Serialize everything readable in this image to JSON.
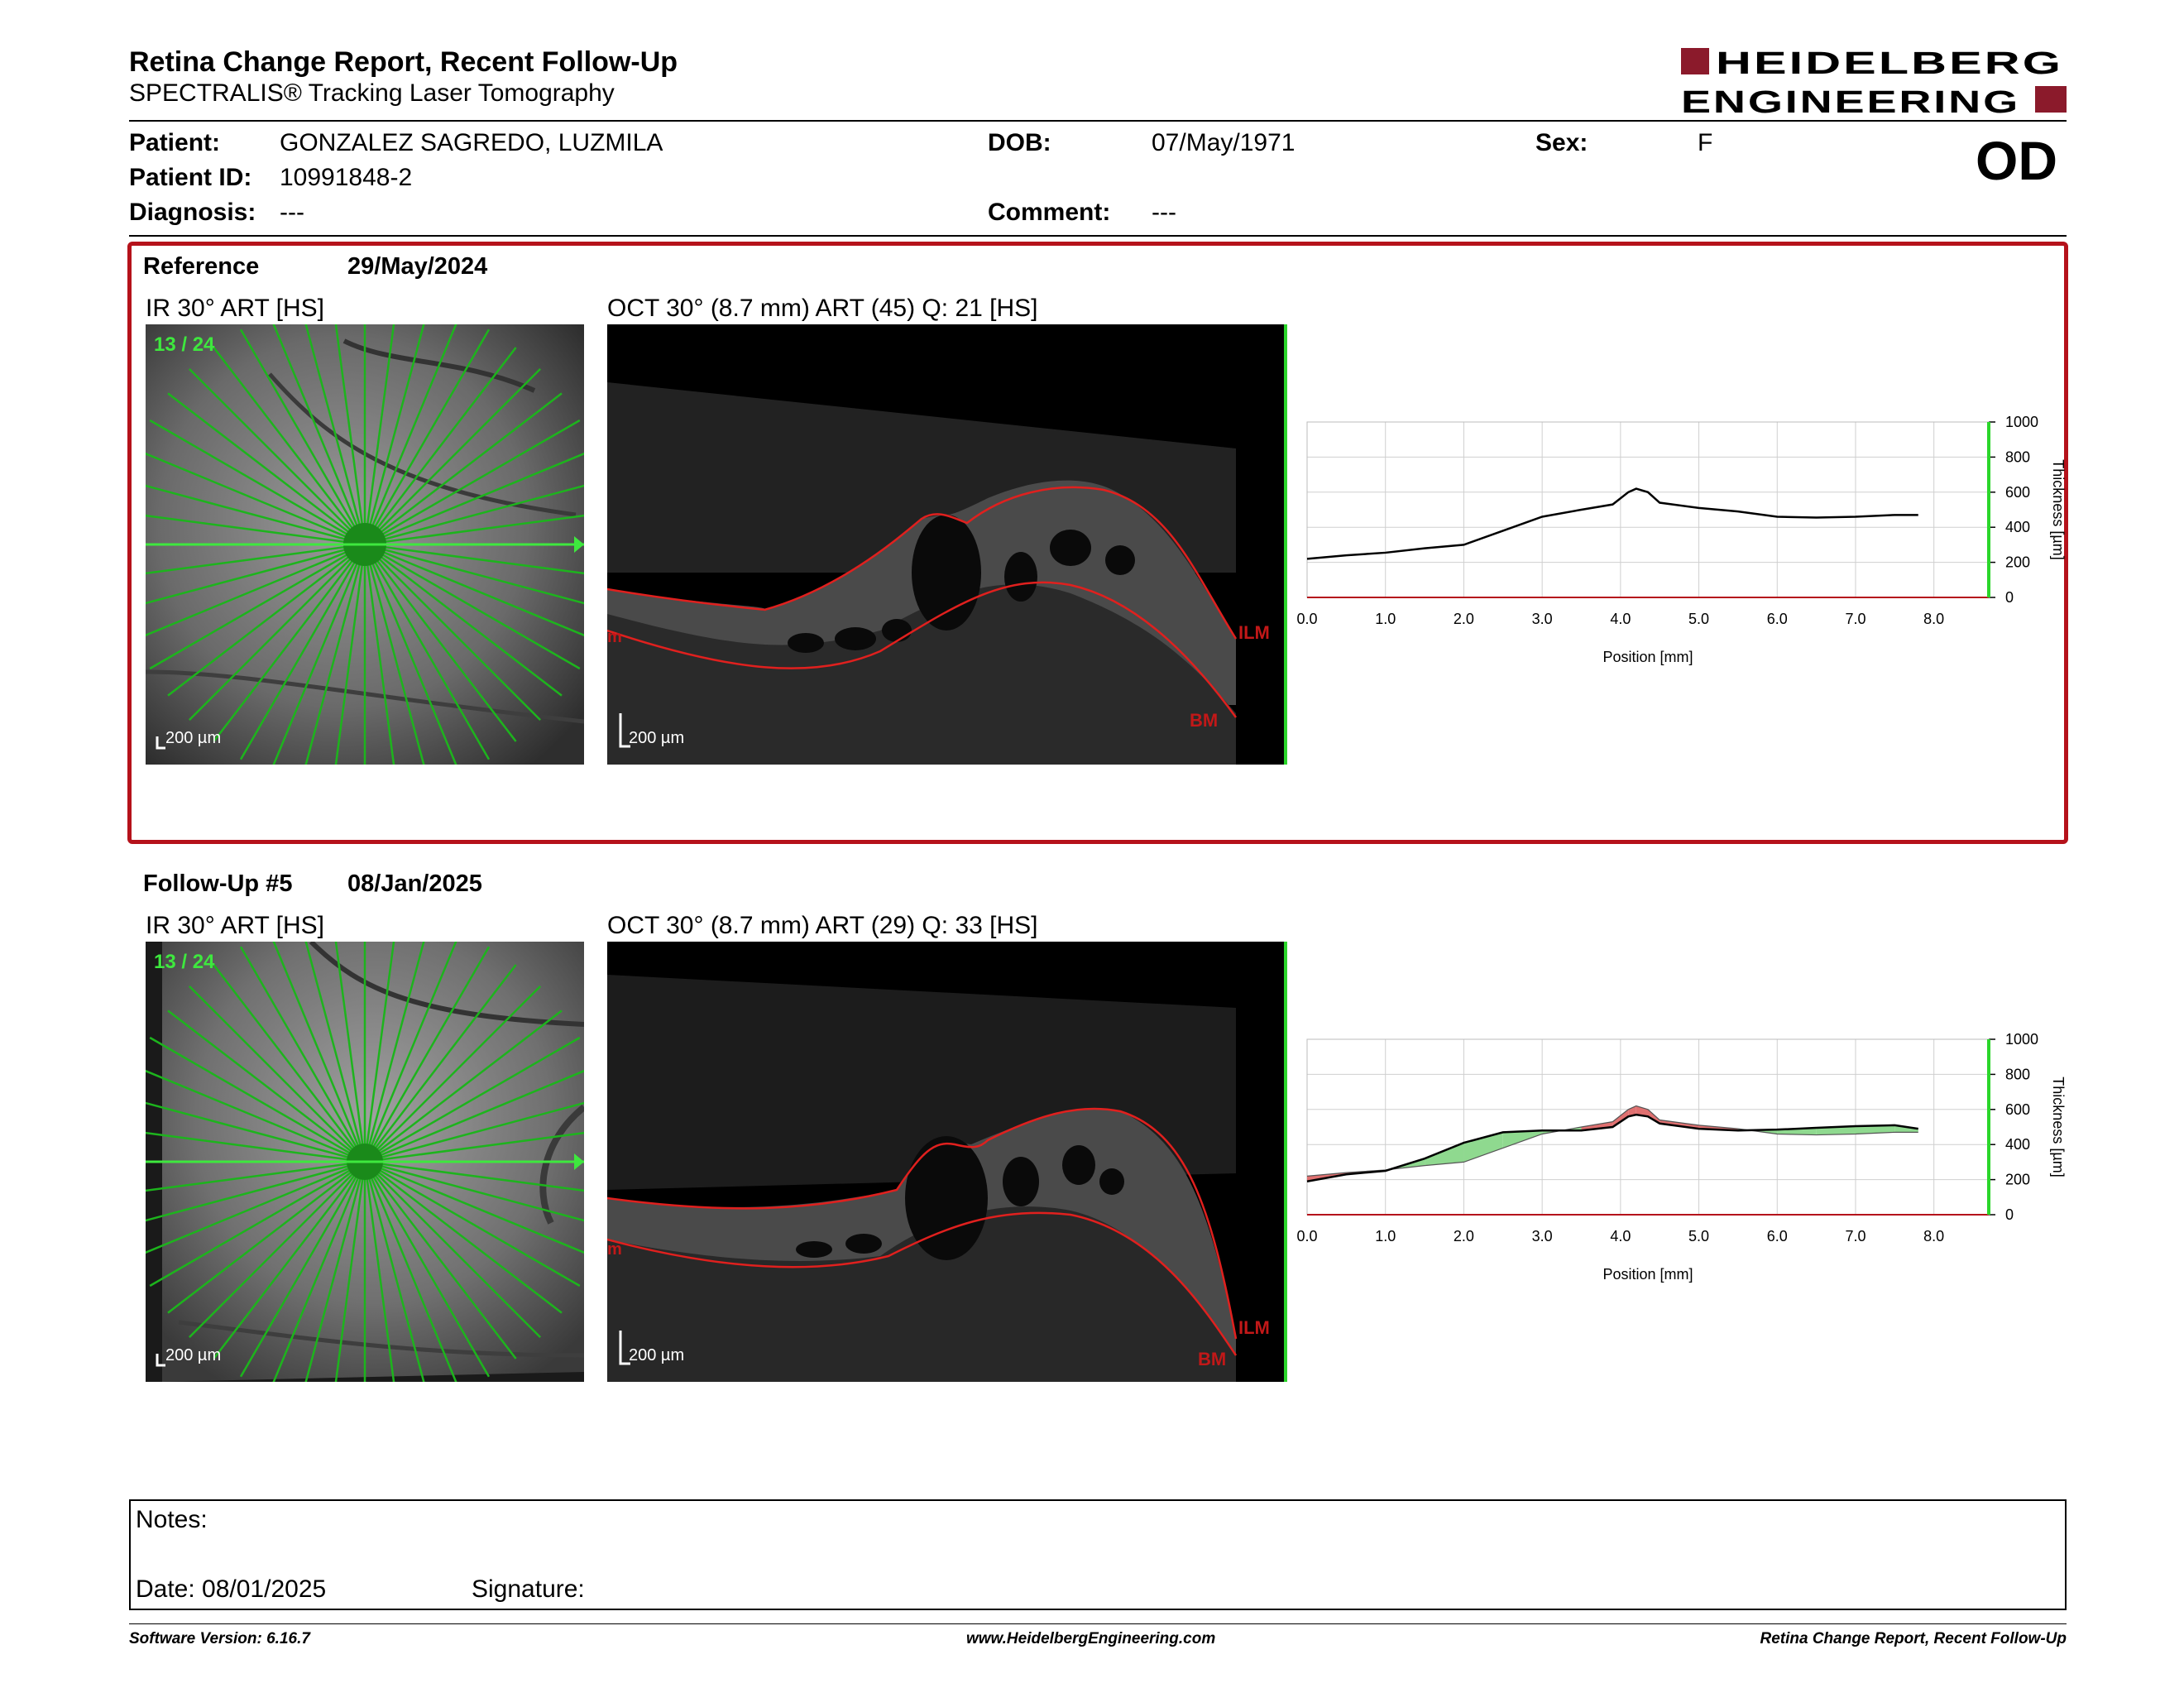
{
  "header": {
    "title": "Retina Change Report, Recent Follow-Up",
    "subtitle": "SPECTRALIS® Tracking Laser Tomography",
    "logo_line1": "HEIDELBERG",
    "logo_line2": "ENGINEERING",
    "brand_color": "#8b1a2b"
  },
  "patient": {
    "patient_label": "Patient:",
    "patient_value": "GONZALEZ SAGREDO, LUZMILA",
    "id_label": "Patient ID:",
    "id_value": "10991848-2",
    "diagnosis_label": "Diagnosis:",
    "diagnosis_value": "---",
    "dob_label": "DOB:",
    "dob_value": "07/May/1971",
    "comment_label": "Comment:",
    "comment_value": "---",
    "sex_label": "Sex:",
    "sex_value": "F",
    "eye": "OD"
  },
  "reference": {
    "label": "Reference",
    "date": "29/May/2024",
    "ir_caption": "IR 30° ART [HS]",
    "oct_caption": "OCT 30° (8.7 mm) ART (45) Q: 21 [HS]",
    "scan_index": "13 / 24",
    "scale_ir": "200 µm",
    "scale_oct": "200 µm",
    "ilm_label": "ILM",
    "bm_label": "BM",
    "edge_label": "m",
    "frame_color": "#b5121b"
  },
  "followup": {
    "label": "Follow-Up #5",
    "date": "08/Jan/2025",
    "ir_caption": "IR 30° ART [HS]",
    "oct_caption": "OCT 30° (8.7 mm) ART (29) Q: 33 [HS]",
    "scan_index": "13 / 24",
    "scale_ir": "200 µm",
    "scale_oct": "200 µm",
    "ilm_label": "ILM",
    "bm_label": "BM",
    "edge_label": "m"
  },
  "chart_data": [
    {
      "type": "line",
      "xlabel": "Position [mm]",
      "ylabel": "Thickness [µm]",
      "xlim": [
        0,
        8.7
      ],
      "ylim": [
        0,
        1000
      ],
      "x_ticks": [
        "0.0",
        "1.0",
        "2.0",
        "3.0",
        "4.0",
        "5.0",
        "6.0",
        "7.0",
        "8.0"
      ],
      "y_ticks": [
        "0",
        "200",
        "400",
        "600",
        "800",
        "1000"
      ],
      "grid": true,
      "series": [
        {
          "color": "#000000",
          "x": [
            0,
            0.5,
            1,
            1.5,
            2,
            2.5,
            3,
            3.5,
            3.9,
            4.1,
            4.2,
            4.35,
            4.5,
            5,
            5.5,
            6,
            6.5,
            7,
            7.5,
            7.8
          ],
          "y": [
            220,
            240,
            255,
            280,
            300,
            380,
            460,
            500,
            530,
            600,
            620,
            600,
            540,
            510,
            490,
            460,
            455,
            460,
            470,
            470
          ]
        }
      ]
    },
    {
      "type": "area",
      "xlabel": "Position [mm]",
      "ylabel": "Thickness [µm]",
      "xlim": [
        0,
        8.7
      ],
      "ylim": [
        0,
        1000
      ],
      "x_ticks": [
        "0.0",
        "1.0",
        "2.0",
        "3.0",
        "4.0",
        "5.0",
        "6.0",
        "7.0",
        "8.0"
      ],
      "y_ticks": [
        "0",
        "200",
        "400",
        "600",
        "800",
        "1000"
      ],
      "grid": true,
      "increase_color": "#8fd98f",
      "decrease_color": "#e07070",
      "series": [
        {
          "color": "#000000",
          "x": [
            0,
            0.5,
            1,
            1.5,
            2,
            2.5,
            3,
            3.5,
            3.9,
            4.1,
            4.2,
            4.35,
            4.5,
            5,
            5.5,
            6,
            6.5,
            7,
            7.5,
            7.8
          ],
          "y": [
            190,
            230,
            250,
            320,
            410,
            470,
            480,
            480,
            500,
            560,
            570,
            560,
            520,
            490,
            480,
            485,
            495,
            505,
            510,
            490
          ]
        },
        {
          "color": "#000000",
          "x": [
            0,
            0.5,
            1,
            1.5,
            2,
            2.5,
            3,
            3.5,
            3.9,
            4.1,
            4.2,
            4.35,
            4.5,
            5,
            5.5,
            6,
            6.5,
            7,
            7.5,
            7.8
          ],
          "y": [
            220,
            240,
            255,
            280,
            300,
            380,
            460,
            500,
            530,
            600,
            620,
            600,
            540,
            510,
            490,
            460,
            455,
            460,
            470,
            470
          ]
        }
      ]
    }
  ],
  "notes": {
    "notes_label": "Notes:",
    "date_text": "Date: 08/01/2025",
    "signature_label": "Signature:"
  },
  "footer": {
    "software": "Software Version: 6.16.7",
    "website": "www.HeidelbergEngineering.com",
    "report_name": "Retina Change Report, Recent Follow-Up"
  }
}
